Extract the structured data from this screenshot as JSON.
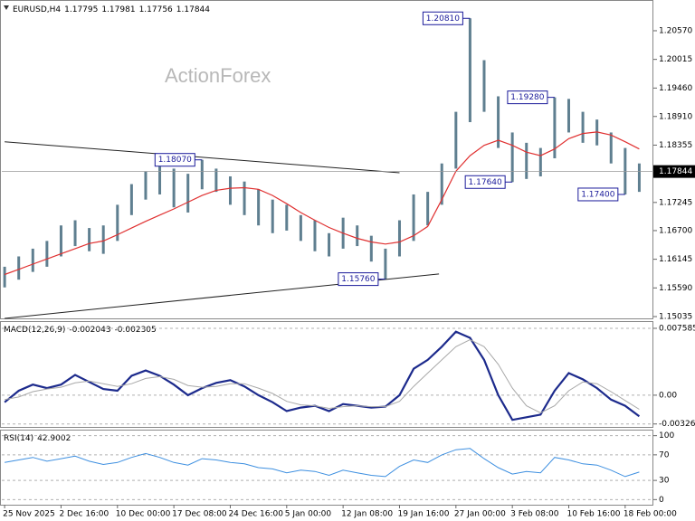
{
  "chart_data": [
    {
      "type": "ohlc",
      "title": "EURUSD,H4",
      "quote": [
        1.17795,
        1.17981,
        1.17756,
        1.17844
      ],
      "watermark": "ActionForex",
      "bar_color": "#5f7f90",
      "xlim": [
        -0.2,
        46
      ],
      "xticks": [
        {
          "value": 0,
          "label": "25 Nov 2025"
        },
        {
          "value": 4,
          "label": "2 Dec 16:00"
        },
        {
          "value": 8,
          "label": "10 Dec 00:00"
        },
        {
          "value": 12,
          "label": "17 Dec 08:00"
        },
        {
          "value": 16,
          "label": "24 Dec 16:00"
        },
        {
          "value": 20,
          "label": "5 Jan 00:00"
        },
        {
          "value": 24,
          "label": "12 Jan 08:00"
        },
        {
          "value": 28,
          "label": "19 Jan 16:00"
        },
        {
          "value": 32,
          "label": "27 Jan 00:00"
        },
        {
          "value": 36,
          "label": "3 Feb 08:00"
        },
        {
          "value": 40,
          "label": "10 Feb 16:00"
        },
        {
          "value": 44,
          "label": "18 Feb 00:00"
        }
      ],
      "ylim": [
        1.15,
        1.2113
      ],
      "yticks": [
        {
          "value": 1.2057,
          "label": "1.20570"
        },
        1.20015,
        {
          "value": 1.1946,
          "label": "1.19460"
        },
        {
          "value": 1.1891,
          "label": "1.18910"
        },
        1.18355,
        1.17245,
        {
          "value": 1.167,
          "label": "1.16700"
        },
        1.16145,
        {
          "value": 1.1559,
          "label": "1.15590"
        },
        1.15035
      ],
      "high": [
        1.16,
        1.162,
        1.1635,
        1.165,
        1.168,
        1.169,
        1.1675,
        1.168,
        1.172,
        1.176,
        1.1785,
        1.1795,
        1.179,
        1.178,
        1.1807,
        1.179,
        1.1775,
        1.1765,
        1.175,
        1.173,
        1.172,
        1.17,
        1.169,
        1.1665,
        1.1695,
        1.168,
        1.166,
        1.1635,
        1.169,
        1.174,
        1.1745,
        1.18,
        1.19,
        1.2081,
        1.2,
        1.193,
        1.186,
        1.184,
        1.183,
        1.1928,
        1.1925,
        1.19,
        1.1885,
        1.186,
        1.183,
        1.18
      ],
      "low": [
        1.156,
        1.1575,
        1.159,
        1.16,
        1.162,
        1.164,
        1.163,
        1.1625,
        1.165,
        1.17,
        1.173,
        1.174,
        1.1715,
        1.1705,
        1.175,
        1.1745,
        1.172,
        1.17,
        1.168,
        1.1665,
        1.167,
        1.165,
        1.163,
        1.162,
        1.1635,
        1.164,
        1.161,
        1.1576,
        1.162,
        1.165,
        1.168,
        1.172,
        1.179,
        1.188,
        1.19,
        1.183,
        1.1764,
        1.177,
        1.1775,
        1.181,
        1.186,
        1.184,
        1.1835,
        1.18,
        1.174,
        1.1745
      ],
      "ma": {
        "color": "#e03131",
        "values": [
          1.1585,
          1.1595,
          1.1605,
          1.1615,
          1.1625,
          1.1635,
          1.1645,
          1.165,
          1.1662,
          1.1675,
          1.1688,
          1.17,
          1.1712,
          1.1725,
          1.1738,
          1.1748,
          1.1752,
          1.1753,
          1.175,
          1.1738,
          1.1722,
          1.1705,
          1.169,
          1.1676,
          1.1665,
          1.1655,
          1.1648,
          1.1644,
          1.1648,
          1.166,
          1.1678,
          1.173,
          1.1785,
          1.1815,
          1.1835,
          1.1845,
          1.1835,
          1.1822,
          1.1815,
          1.1828,
          1.1848,
          1.1858,
          1.1861,
          1.1855,
          1.1842,
          1.1828
        ]
      },
      "last_price": 1.17844,
      "trendlines": [
        {
          "x": [
            0,
            28
          ],
          "y": [
            1.1842,
            1.1782
          ]
        },
        {
          "x": [
            0,
            30.8
          ],
          "y": [
            1.15,
            1.1586
          ]
        }
      ],
      "annotations": [
        {
          "label": "1.20810",
          "value": 1.2081,
          "x": 33
        },
        {
          "label": "1.19280",
          "value": 1.1928,
          "x": 39
        },
        {
          "label": "1.18070",
          "value": 1.1807,
          "x": 14
        },
        {
          "label": "1.17640",
          "value": 1.1764,
          "x": 36
        },
        {
          "label": "1.17400",
          "value": 1.174,
          "x": 44
        },
        {
          "label": "1.15760",
          "value": 1.1576,
          "x": 27
        }
      ]
    },
    {
      "type": "line",
      "title": "MACD(12,26,9)",
      "quote": [
        -0.002043,
        -0.002305
      ],
      "ylim": [
        -0.0036,
        0.0083
      ],
      "yticks": [
        0.007585,
        {
          "value": 0,
          "label": "0.00"
        },
        -0.003264
      ],
      "series": [
        {
          "color": "#1c2a8c",
          "values": [
            -0.0008,
            0.0005,
            0.0012,
            0.0008,
            0.0012,
            0.0023,
            0.0015,
            0.0007,
            0.0005,
            0.0022,
            0.0028,
            0.0022,
            0.0012,
            0.0,
            0.0008,
            0.0014,
            0.0017,
            0.001,
            0.0,
            -0.0008,
            -0.0018,
            -0.0014,
            -0.0012,
            -0.0018,
            -0.001,
            -0.0012,
            -0.0014,
            -0.0013,
            0.0,
            0.003,
            0.004,
            0.0055,
            0.0072,
            0.0065,
            0.004,
            0.0,
            -0.0028,
            -0.0025,
            -0.0022,
            0.0005,
            0.0025,
            0.0018,
            0.0008,
            -0.0005,
            -0.0012,
            -0.0024
          ]
        },
        {
          "color": "#a8a8a8",
          "values": [
            -0.0005,
            -0.0002,
            0.0004,
            0.0007,
            0.0009,
            0.0014,
            0.0016,
            0.0013,
            0.001,
            0.0013,
            0.0019,
            0.0021,
            0.0018,
            0.0011,
            0.0009,
            0.001,
            0.0013,
            0.0013,
            0.0008,
            0.0002,
            -0.0007,
            -0.0011,
            -0.0012,
            -0.0015,
            -0.0013,
            -0.0012,
            -0.0013,
            -0.0013,
            -0.0007,
            0.001,
            0.0025,
            0.004,
            0.0055,
            0.0063,
            0.0055,
            0.0035,
            0.0008,
            -0.0012,
            -0.002,
            -0.0012,
            0.0005,
            0.0015,
            0.0013,
            0.0004,
            -0.0006,
            -0.0016
          ]
        }
      ]
    },
    {
      "type": "line",
      "title": "RSI(14)",
      "quote": [
        42.9002
      ],
      "ylim": [
        -8,
        108
      ],
      "yticks": [
        100,
        70,
        30,
        0
      ],
      "series": [
        {
          "color": "#3d8fe0",
          "values": [
            58,
            62,
            66,
            60,
            64,
            68,
            60,
            55,
            58,
            66,
            72,
            66,
            58,
            54,
            64,
            62,
            58,
            56,
            50,
            48,
            42,
            46,
            44,
            38,
            46,
            42,
            38,
            36,
            52,
            62,
            58,
            70,
            78,
            80,
            64,
            50,
            40,
            44,
            42,
            66,
            62,
            56,
            54,
            46,
            36,
            43
          ]
        }
      ]
    }
  ]
}
